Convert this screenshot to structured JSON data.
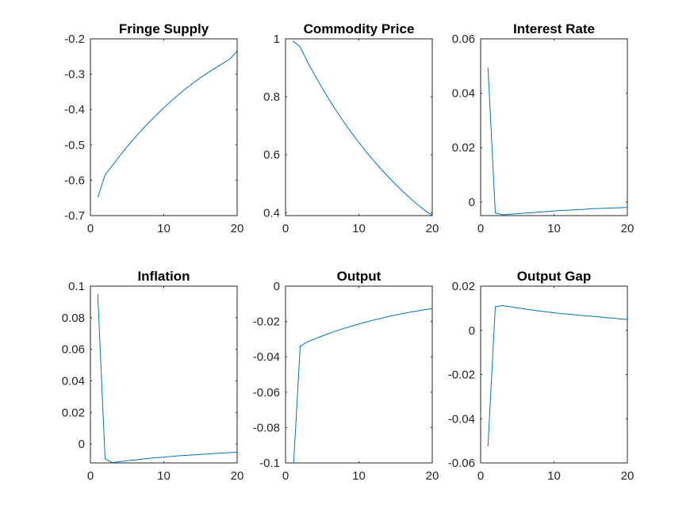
{
  "chart_data": [
    {
      "type": "line",
      "title": "Fringe Supply",
      "xlim": [
        0,
        20
      ],
      "ylim": [
        -0.7,
        -0.2
      ],
      "xticks": [
        0,
        10,
        20
      ],
      "xtick_labels": [
        "0",
        "10",
        "20"
      ],
      "yticks": [
        -0.7,
        -0.6,
        -0.5,
        -0.4,
        -0.3,
        -0.2
      ],
      "ytick_labels": [
        "-0.7",
        "-0.6",
        "-0.5",
        "-0.4",
        "-0.3",
        "-0.2"
      ],
      "x": [
        1,
        2,
        3,
        4,
        5,
        6,
        7,
        8,
        9,
        10,
        11,
        12,
        13,
        14,
        15,
        16,
        17,
        18,
        19,
        20
      ],
      "y": [
        -0.648,
        -0.585,
        -0.558,
        -0.531,
        -0.505,
        -0.481,
        -0.458,
        -0.436,
        -0.415,
        -0.395,
        -0.376,
        -0.358,
        -0.341,
        -0.325,
        -0.31,
        -0.296,
        -0.283,
        -0.27,
        -0.257,
        -0.235
      ]
    },
    {
      "type": "line",
      "title": "Commodity Price",
      "xlim": [
        0,
        20
      ],
      "ylim": [
        0.39,
        1.0
      ],
      "xticks": [
        0,
        10,
        20
      ],
      "xtick_labels": [
        "0",
        "10",
        "20"
      ],
      "yticks": [
        0.4,
        0.6,
        0.8,
        1.0
      ],
      "ytick_labels": [
        "0.4",
        "0.6",
        "0.8",
        "1"
      ],
      "x": [
        1,
        2,
        3,
        4,
        5,
        6,
        7,
        8,
        9,
        10,
        11,
        12,
        13,
        14,
        15,
        16,
        17,
        18,
        19,
        20
      ],
      "y": [
        0.993,
        0.972,
        0.92,
        0.874,
        0.83,
        0.788,
        0.749,
        0.711,
        0.676,
        0.642,
        0.61,
        0.58,
        0.551,
        0.524,
        0.498,
        0.473,
        0.45,
        0.428,
        0.408,
        0.39
      ]
    },
    {
      "type": "line",
      "title": "Interest Rate",
      "xlim": [
        0,
        20
      ],
      "ylim": [
        -0.005,
        0.06
      ],
      "xticks": [
        0,
        10,
        20
      ],
      "xtick_labels": [
        "0",
        "10",
        "20"
      ],
      "yticks": [
        0,
        0.02,
        0.04,
        0.06
      ],
      "ytick_labels": [
        "0",
        "0.02",
        "0.04",
        "0.06"
      ],
      "x": [
        1,
        2,
        3,
        4,
        5,
        6,
        7,
        8,
        9,
        10,
        11,
        12,
        13,
        14,
        15,
        16,
        17,
        18,
        19,
        20
      ],
      "y": [
        0.0495,
        -0.004,
        -0.0047,
        -0.0045,
        -0.0043,
        -0.0041,
        -0.0039,
        -0.0037,
        -0.0035,
        -0.0033,
        -0.0031,
        -0.003,
        -0.0028,
        -0.0027,
        -0.0025,
        -0.0024,
        -0.0023,
        -0.0022,
        -0.0021,
        -0.002
      ]
    },
    {
      "type": "line",
      "title": "Inflation",
      "xlim": [
        0,
        20
      ],
      "ylim": [
        -0.012,
        0.1
      ],
      "xticks": [
        0,
        10,
        20
      ],
      "xtick_labels": [
        "0",
        "10",
        "20"
      ],
      "yticks": [
        0,
        0.02,
        0.04,
        0.06,
        0.08,
        0.1
      ],
      "ytick_labels": [
        "0",
        "0.02",
        "0.04",
        "0.06",
        "0.08",
        "0.1"
      ],
      "x": [
        1,
        2,
        3,
        4,
        5,
        6,
        7,
        8,
        9,
        10,
        11,
        12,
        13,
        14,
        15,
        16,
        17,
        18,
        19,
        20
      ],
      "y": [
        0.095,
        -0.0095,
        -0.0118,
        -0.0112,
        -0.0106,
        -0.0101,
        -0.0096,
        -0.0091,
        -0.0087,
        -0.0083,
        -0.0079,
        -0.0075,
        -0.0072,
        -0.0069,
        -0.0066,
        -0.0063,
        -0.006,
        -0.0057,
        -0.0055,
        -0.0052
      ]
    },
    {
      "type": "line",
      "title": "Output",
      "xlim": [
        0,
        20
      ],
      "ylim": [
        -0.1,
        0
      ],
      "xticks": [
        0,
        10,
        20
      ],
      "xtick_labels": [
        "0",
        "10",
        "20"
      ],
      "yticks": [
        -0.1,
        -0.08,
        -0.06,
        -0.04,
        -0.02,
        0
      ],
      "ytick_labels": [
        "-0.1",
        "-0.08",
        "-0.06",
        "-0.04",
        "-0.02",
        "0"
      ],
      "x": [
        1,
        2,
        3,
        4,
        5,
        6,
        7,
        8,
        9,
        10,
        11,
        12,
        13,
        14,
        15,
        16,
        17,
        18,
        19,
        20
      ],
      "y": [
        -0.108,
        -0.034,
        -0.0315,
        -0.0298,
        -0.0282,
        -0.0266,
        -0.0252,
        -0.0239,
        -0.0226,
        -0.0214,
        -0.0203,
        -0.0192,
        -0.0182,
        -0.0172,
        -0.0163,
        -0.0155,
        -0.0147,
        -0.014,
        -0.0133,
        -0.0127
      ]
    },
    {
      "type": "line",
      "title": "Output Gap",
      "xlim": [
        0,
        20
      ],
      "ylim": [
        -0.06,
        0.02
      ],
      "xticks": [
        0,
        10,
        20
      ],
      "xtick_labels": [
        "0",
        "10",
        "20"
      ],
      "yticks": [
        -0.06,
        -0.04,
        -0.02,
        0,
        0.02
      ],
      "ytick_labels": [
        "-0.06",
        "-0.04",
        "-0.02",
        "0",
        "0.02"
      ],
      "x": [
        1,
        2,
        3,
        4,
        5,
        6,
        7,
        8,
        9,
        10,
        11,
        12,
        13,
        14,
        15,
        16,
        17,
        18,
        19,
        20
      ],
      "y": [
        -0.0525,
        0.0107,
        0.0112,
        0.0107,
        0.0102,
        0.0097,
        0.0092,
        0.0088,
        0.0084,
        0.008,
        0.0076,
        0.0073,
        0.007,
        0.0067,
        0.0064,
        0.0061,
        0.0058,
        0.0055,
        0.0052,
        0.0049
      ]
    }
  ],
  "colors": {
    "line": "#0072BD",
    "axes": "#262626",
    "background": "#ffffff"
  }
}
